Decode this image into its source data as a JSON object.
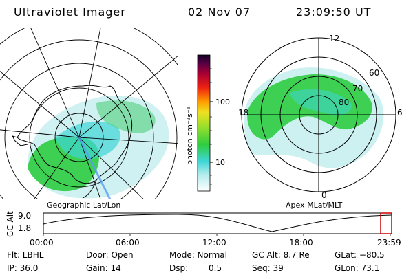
{
  "header": {
    "title": "Ultraviolet Imager",
    "date": "02 Nov 07",
    "time": "23:09:50 UT"
  },
  "colorbar": {
    "unit_label": "photon cm⁻²s⁻¹",
    "ticks": [
      "100",
      "10"
    ]
  },
  "panels": {
    "left_label": "Geographic Lat/Lon",
    "right_label": "Apex MLat/MLT",
    "polar_labels": {
      "top": "12",
      "bottom": "0",
      "left": "18",
      "right": "6",
      "r60": "60",
      "r70": "70",
      "r80": "80"
    }
  },
  "timeline": {
    "axis_label": "GC Alt",
    "y_max": "9.0",
    "y_min": "1.8",
    "x_ticks": [
      "00:00",
      "06:00",
      "12:00",
      "18:00",
      "23:59"
    ]
  },
  "footer": {
    "flt": "Flt: LBHL",
    "ip": "IP: 36.0",
    "door": "Door: Open",
    "gain": "Gain: 14",
    "mode": "Mode: Normal",
    "dsp_label": "Dsp:",
    "dsp_value": "0.5",
    "gc_alt": "GC Alt: 8.7 Re",
    "seq": "Seq: 39",
    "glat": "GLat: −80.5",
    "glon": "GLon:  73.1"
  },
  "colors": {
    "aurora_green": "#2ecc40",
    "aurora_cyan": "#3fd6d6",
    "highlight_red": "#cc0000"
  }
}
